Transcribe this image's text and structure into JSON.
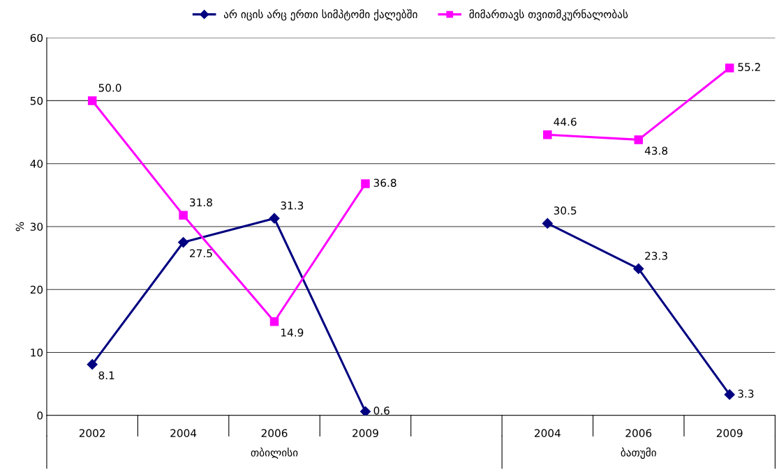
{
  "chart_data": {
    "type": "line",
    "ylabel": "%",
    "categories": [
      "2002",
      "2004",
      "2006",
      "2009",
      null,
      "2004",
      "2006",
      "2009"
    ],
    "series": [
      {
        "name": "არ იცის არც ერთი სიმპტომი ქალებში",
        "color": "#000080",
        "marker": "diamond",
        "values": [
          8.1,
          27.5,
          31.3,
          0.6,
          null,
          30.5,
          23.3,
          3.3
        ],
        "value_labels": [
          "8.1",
          "27.5",
          "31.3",
          "0.6",
          null,
          "30.5",
          "23.3",
          "3.3"
        ]
      },
      {
        "name": "მიმართავს თვითმკურნალობას",
        "color": "#ff00ff",
        "marker": "square",
        "values": [
          50.0,
          31.8,
          14.9,
          36.8,
          null,
          44.6,
          43.8,
          55.2
        ],
        "value_labels": [
          "50.0",
          "31.8",
          "14.9",
          "36.8",
          null,
          "44.6",
          "43.8",
          "55.2"
        ]
      }
    ],
    "annotations": [
      "თბილისი",
      "ბათუმი"
    ],
    "ylim": [
      0,
      60
    ],
    "yticks": [
      0,
      10,
      20,
      30,
      40,
      50,
      60
    ],
    "grid": "y",
    "legend": "top",
    "line_style": "solid"
  }
}
